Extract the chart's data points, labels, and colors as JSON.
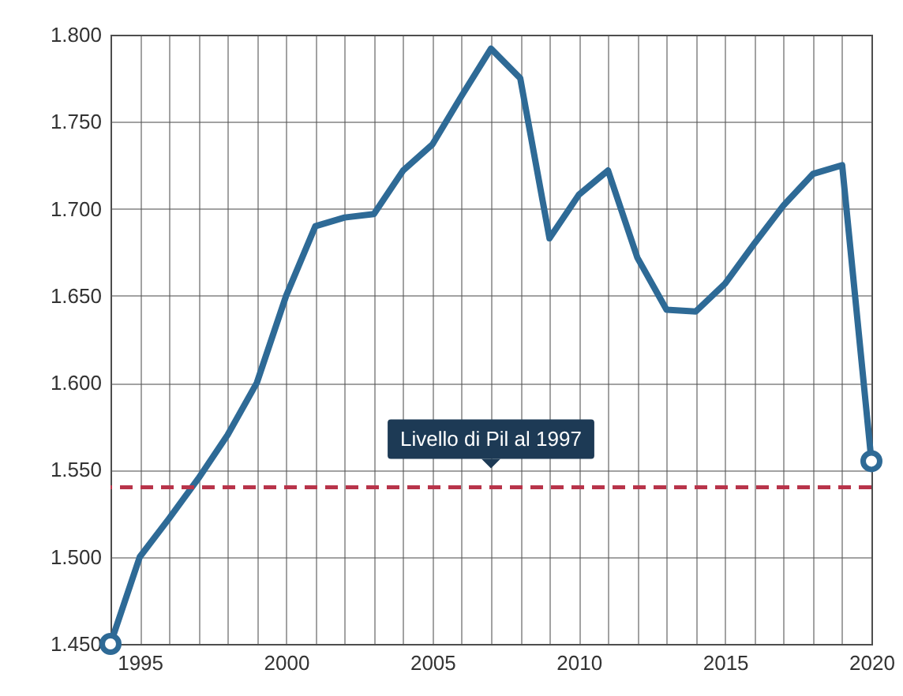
{
  "chart_data": {
    "type": "line",
    "x": [
      1994,
      1995,
      1996,
      1997,
      1998,
      1999,
      2000,
      2001,
      2002,
      2003,
      2004,
      2005,
      2006,
      2007,
      2008,
      2009,
      2010,
      2011,
      2012,
      2013,
      2014,
      2015,
      2016,
      2017,
      2018,
      2019,
      2020
    ],
    "series": [
      {
        "type": "line",
        "color": "#2e6a96",
        "values": [
          1450,
          1500,
          1522,
          1545,
          1570,
          1600,
          1650,
          1690,
          1695,
          1697,
          1722,
          1737,
          1765,
          1792,
          1775,
          1683,
          1708,
          1722,
          1672,
          1642,
          1641,
          1657,
          1680,
          1702,
          1720,
          1725,
          1555
        ]
      },
      {
        "type": "scatter",
        "color": "#2e6a96",
        "marker": "circle",
        "x": [
          1994,
          2020
        ],
        "values": [
          1450,
          1555
        ]
      }
    ],
    "xlim": [
      1994,
      2020
    ],
    "xticks": [
      {
        "value": 1994,
        "label": null
      },
      1995,
      {
        "value": 1996,
        "label": null
      },
      {
        "value": 1997,
        "label": null
      },
      {
        "value": 1998,
        "label": null
      },
      {
        "value": 1999,
        "label": null
      },
      2000,
      {
        "value": 2001,
        "label": null
      },
      {
        "value": 2002,
        "label": null
      },
      {
        "value": 2003,
        "label": null
      },
      {
        "value": 2004,
        "label": null
      },
      2005,
      {
        "value": 2006,
        "label": null
      },
      {
        "value": 2007,
        "label": null
      },
      {
        "value": 2008,
        "label": null
      },
      {
        "value": 2009,
        "label": null
      },
      2010,
      {
        "value": 2011,
        "label": null
      },
      {
        "value": 2012,
        "label": null
      },
      {
        "value": 2013,
        "label": null
      },
      {
        "value": 2014,
        "label": null
      },
      2015,
      {
        "value": 2016,
        "label": null
      },
      {
        "value": 2017,
        "label": null
      },
      {
        "value": 2018,
        "label": null
      },
      {
        "value": 2019,
        "label": null
      },
      2020
    ],
    "ylim": [
      1450,
      1800
    ],
    "yticks": [
      {
        "value": 1450,
        "label": "1.450"
      },
      {
        "value": 1500,
        "label": "1.500"
      },
      {
        "value": 1550,
        "label": "1.550"
      },
      {
        "value": 1600,
        "label": "1.600"
      },
      {
        "value": 1650,
        "label": "1.650"
      },
      {
        "value": 1700,
        "label": "1.700"
      },
      {
        "value": 1750,
        "label": "1.750"
      },
      {
        "value": 1800,
        "label": "1.800"
      }
    ],
    "grid": true,
    "marker": "none",
    "line_style": "solid",
    "ref_lines": [
      {
        "axis": "y",
        "value": 1540,
        "label": "Livello di Pil al 1997",
        "color": "#b8344a",
        "line_style": "dashed"
      }
    ]
  }
}
